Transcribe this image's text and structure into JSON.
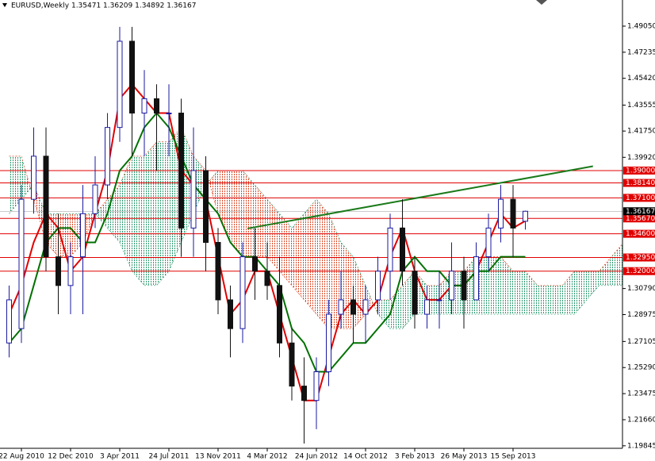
{
  "chart_data": {
    "type": "candlestick",
    "title": "EURUSD,Weekly  1.35471 1.36209 1.34892 1.36167",
    "categories": [
      null,
      "22 Aug 2010",
      null,
      null,
      null,
      "12 Dec 2010",
      null,
      null,
      null,
      "3 Apr 2011",
      null,
      null,
      null,
      "24 Jul 2011",
      null,
      null,
      null,
      "13 Nov 2011",
      null,
      null,
      null,
      "4 Mar 2012",
      null,
      null,
      null,
      "24 Jun 2012",
      null,
      null,
      null,
      "14 Oct 2012",
      null,
      null,
      null,
      "3 Feb 2013",
      null,
      null,
      null,
      "26 May 2013",
      null,
      null,
      null,
      "15 Sep 2013",
      null
    ],
    "open": [
      1.27,
      1.28,
      1.37,
      1.4,
      1.33,
      1.31,
      1.33,
      1.36,
      1.38,
      1.42,
      1.48,
      1.43,
      1.44,
      1.43,
      1.43,
      1.35,
      1.39,
      1.34,
      1.3,
      1.28,
      1.33,
      1.32,
      1.31,
      1.27,
      1.24,
      1.23,
      1.25,
      1.29,
      1.3,
      1.29,
      1.3,
      1.32,
      1.35,
      1.32,
      1.29,
      1.3,
      1.3,
      1.32,
      1.3,
      1.33,
      1.35,
      1.37,
      1.35471
    ],
    "high": [
      1.31,
      1.38,
      1.42,
      1.42,
      1.36,
      1.34,
      1.38,
      1.4,
      1.43,
      1.49,
      1.49,
      1.46,
      1.45,
      1.45,
      1.44,
      1.42,
      1.4,
      1.35,
      1.31,
      1.34,
      1.35,
      1.34,
      1.33,
      1.28,
      1.26,
      1.26,
      1.3,
      1.32,
      1.31,
      1.31,
      1.33,
      1.36,
      1.37,
      1.33,
      1.31,
      1.32,
      1.34,
      1.33,
      1.34,
      1.36,
      1.38,
      1.38,
      1.36209
    ],
    "low": [
      1.26,
      1.27,
      1.36,
      1.32,
      1.29,
      1.29,
      1.29,
      1.35,
      1.37,
      1.41,
      1.4,
      1.4,
      1.39,
      1.4,
      1.33,
      1.33,
      1.32,
      1.29,
      1.26,
      1.27,
      1.3,
      1.3,
      1.26,
      1.23,
      1.2,
      1.21,
      1.24,
      1.28,
      1.27,
      1.27,
      1.29,
      1.3,
      1.31,
      1.28,
      1.28,
      1.28,
      1.29,
      1.28,
      1.3,
      1.32,
      1.34,
      1.33,
      1.34892
    ],
    "close": [
      1.3,
      1.37,
      1.4,
      1.33,
      1.31,
      1.33,
      1.36,
      1.38,
      1.42,
      1.48,
      1.43,
      1.44,
      1.43,
      1.43,
      1.35,
      1.39,
      1.34,
      1.3,
      1.28,
      1.33,
      1.32,
      1.31,
      1.27,
      1.24,
      1.23,
      1.25,
      1.29,
      1.3,
      1.29,
      1.3,
      1.32,
      1.35,
      1.32,
      1.29,
      1.3,
      1.3,
      1.32,
      1.3,
      1.33,
      1.35,
      1.37,
      1.35,
      1.36167
    ],
    "up_color": "#1a1aa0",
    "down_color": "#111111",
    "line_series": [
      {
        "color": "#e00000",
        "values": [
          1.29,
          1.31,
          1.34,
          1.36,
          1.35,
          1.32,
          1.33,
          1.36,
          1.39,
          1.44,
          1.45,
          1.44,
          1.43,
          1.43,
          1.39,
          1.38,
          1.37,
          1.33,
          1.29,
          1.3,
          1.32,
          1.32,
          1.29,
          1.26,
          1.23,
          1.23,
          1.26,
          1.29,
          1.3,
          1.29,
          1.3,
          1.33,
          1.35,
          1.32,
          1.3,
          1.3,
          1.31,
          1.31,
          1.32,
          1.34,
          1.36,
          1.35,
          1.355
        ]
      },
      {
        "color": "#007000",
        "values": [
          1.27,
          1.28,
          1.31,
          1.34,
          1.35,
          1.35,
          1.34,
          1.34,
          1.36,
          1.39,
          1.4,
          1.42,
          1.43,
          1.42,
          1.4,
          1.38,
          1.37,
          1.36,
          1.34,
          1.33,
          1.33,
          1.32,
          1.31,
          1.28,
          1.27,
          1.25,
          1.25,
          1.26,
          1.27,
          1.27,
          1.28,
          1.29,
          1.32,
          1.33,
          1.32,
          1.32,
          1.31,
          1.31,
          1.32,
          1.32,
          1.33,
          1.33,
          1.33
        ]
      }
    ],
    "cloud": {
      "up_color": "#2e9a6e",
      "down_color": "#d84a2a",
      "span_a": [
        1.4,
        1.4,
        1.37,
        1.34,
        1.33,
        1.33,
        1.34,
        1.36,
        1.37,
        1.38,
        1.4,
        1.4,
        1.41,
        1.41,
        1.42,
        1.4,
        1.39,
        1.36,
        1.34,
        1.33,
        1.33,
        1.33,
        1.32,
        1.31,
        1.3,
        1.29,
        1.28,
        1.28,
        1.28,
        1.29,
        1.3,
        1.3,
        1.31,
        1.32,
        1.31,
        1.31,
        1.32,
        1.32,
        1.33,
        1.33,
        1.33,
        1.32,
        1.32,
        1.31,
        1.31,
        1.31,
        1.32,
        1.32,
        1.32,
        1.33,
        1.34
      ],
      "span_b": [
        1.36,
        1.37,
        1.38,
        1.36,
        1.36,
        1.36,
        1.36,
        1.36,
        1.35,
        1.34,
        1.32,
        1.31,
        1.31,
        1.32,
        1.34,
        1.36,
        1.38,
        1.39,
        1.39,
        1.39,
        1.38,
        1.37,
        1.36,
        1.35,
        1.36,
        1.37,
        1.36,
        1.34,
        1.33,
        1.31,
        1.29,
        1.28,
        1.28,
        1.29,
        1.29,
        1.29,
        1.29,
        1.29,
        1.29,
        1.29,
        1.29,
        1.29,
        1.29,
        1.29,
        1.29,
        1.29,
        1.29,
        1.3,
        1.31,
        1.31,
        1.31
      ]
    },
    "trendline": {
      "color": "#1a7a1a",
      "x": [
        19.4,
        47.5
      ],
      "y": [
        1.3497,
        1.393
      ]
    },
    "levels": {
      "color": "#e00000",
      "values": [
        {
          "value": 1.39,
          "label": "1.39000"
        },
        {
          "value": 1.3814,
          "label": "1.38140"
        },
        {
          "value": 1.371,
          "label": "1.37100"
        },
        {
          "value": 1.3567,
          "label": "1.35670"
        },
        {
          "value": 1.346,
          "label": "1.34600"
        },
        {
          "value": 1.3295,
          "label": "1.32950"
        },
        {
          "value": 1.32,
          "label": "1.32000"
        }
      ]
    },
    "current_price": 1.36167,
    "ylim": [
      1.1967,
      1.5087
    ],
    "yticks": [
      {
        "value": 1.4905,
        "label": "1.49050"
      },
      1.47235,
      {
        "value": 1.4542,
        "label": "1.45420"
      },
      1.43555,
      {
        "value": 1.4175,
        "label": "1.41750"
      },
      {
        "value": 1.3992,
        "label": "1.39920"
      },
      {
        "value": 1.3079,
        "label": "1.30790"
      },
      1.28975,
      1.27105,
      {
        "value": 1.2529,
        "label": "1.25290"
      },
      1.23475,
      {
        "value": 1.2166,
        "label": "1.21660"
      },
      1.19845
    ]
  }
}
